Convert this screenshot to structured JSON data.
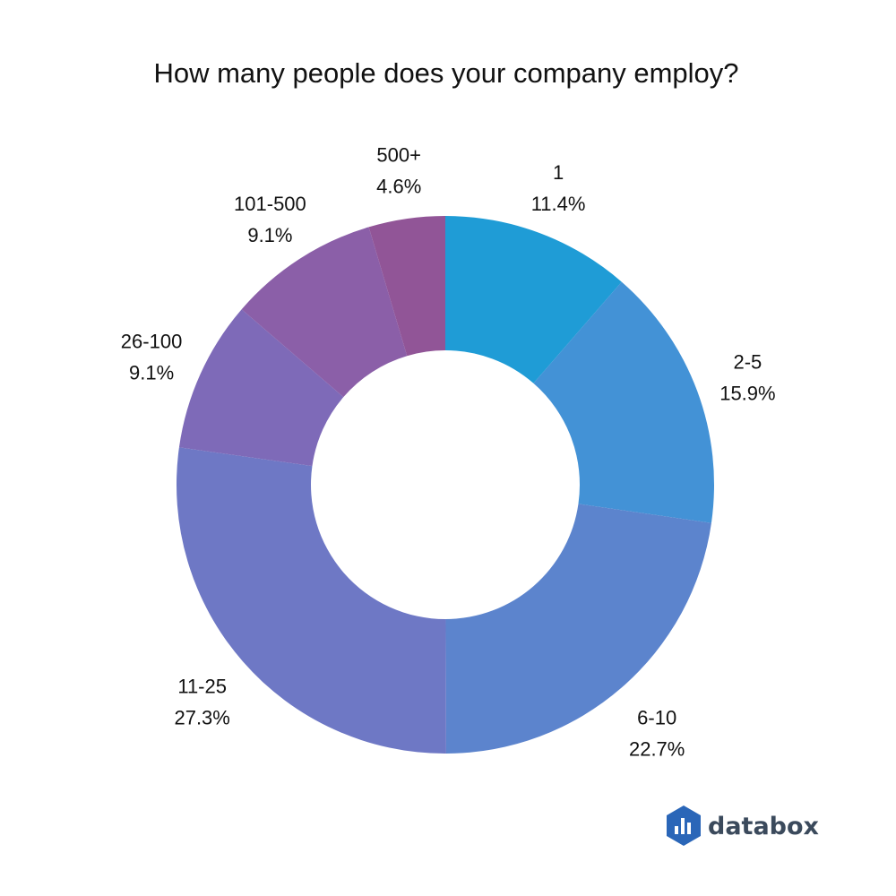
{
  "chart_data": {
    "type": "pie",
    "donut": true,
    "title": "How many people does your company employ?",
    "legend": "none (labels placed outside each slice)",
    "slices": [
      {
        "label": "1",
        "value": 11.4,
        "value_label": "11.4%",
        "color": "#1f9cd6"
      },
      {
        "label": "2-5",
        "value": 15.9,
        "value_label": "15.9%",
        "color": "#4392d6"
      },
      {
        "label": "6-10",
        "value": 22.7,
        "value_label": "22.7%",
        "color": "#5c84cd"
      },
      {
        "label": "11-25",
        "value": 27.3,
        "value_label": "27.3%",
        "color": "#6e78c5"
      },
      {
        "label": "26-100",
        "value": 9.1,
        "value_label": "9.1%",
        "color": "#7e6ab8"
      },
      {
        "label": "101-500",
        "value": 9.1,
        "value_label": "9.1%",
        "color": "#8b5fa8"
      },
      {
        "label": "500+",
        "value": 4.6,
        "value_label": "4.6%",
        "color": "#915597"
      }
    ]
  },
  "brand": {
    "name": "databox",
    "logo_icon": "databox-hexagon-bars-icon",
    "text_color": "#3b4a5c",
    "logo_color": "#2a66b8"
  }
}
